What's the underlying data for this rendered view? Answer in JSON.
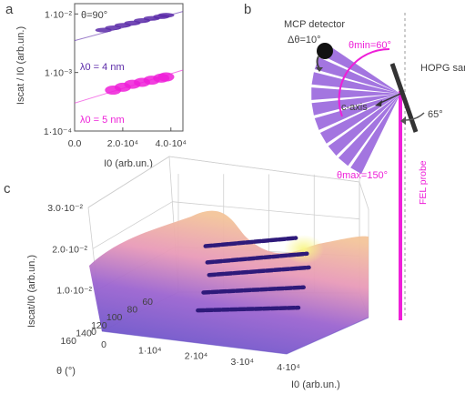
{
  "panels": {
    "a": "a",
    "b": "b",
    "c": "c"
  },
  "chart_data": [
    {
      "type": "scatter",
      "panel": "a",
      "annotation": "θ=90°",
      "xlabel": "I0 (arb.un.)",
      "ylabel": "Iscat / I0 (arb.un.)",
      "xlim": [
        0,
        45000
      ],
      "ylim": [
        0.0001,
        0.015
      ],
      "yscale": "log",
      "x_tick_labels": [
        "0.0",
        "2.0·10⁴",
        "4.0·10⁴"
      ],
      "y_tick_labels": [
        "1·10⁻²",
        "1·10⁻³",
        "1·10⁻⁴"
      ],
      "series": [
        {
          "name": "λ0 = 4 nm",
          "color": "#5b2aa8",
          "x": [
            12000,
            16000,
            20000,
            24000,
            28000,
            32000,
            36000,
            38000
          ],
          "y": [
            0.0053,
            0.0058,
            0.0064,
            0.007,
            0.0077,
            0.0084,
            0.009,
            0.0095
          ],
          "fit": {
            "x": [
              0,
              45000
            ],
            "y": [
              0.0035,
              0.011
            ]
          }
        },
        {
          "name": "λ0 = 5 nm",
          "color": "#ee1fd8",
          "x": [
            16000,
            20000,
            24000,
            28000,
            32000,
            36000,
            38000
          ],
          "y": [
            0.0005,
            0.00056,
            0.00063,
            0.00068,
            0.00074,
            0.0008,
            0.00084
          ],
          "fit": {
            "x": [
              0,
              45000
            ],
            "y": [
              0.0003,
              0.0011
            ]
          }
        }
      ]
    },
    {
      "type": "diagram",
      "panel": "b",
      "labels": {
        "detector": "MCP detector",
        "delta": "Δθ=10°",
        "theta_min": "θmin=60°",
        "theta_max": "θmax=150°",
        "sample": "HOPG sample",
        "caxis": "c-axis",
        "angle": "65°",
        "probe": "FEL probe"
      },
      "detector_angles_deg": [
        60,
        70,
        80,
        90,
        100,
        110,
        120,
        130,
        140,
        150
      ]
    },
    {
      "type": "surface",
      "panel": "c",
      "xlabel": "I0 (arb.un.)",
      "ylabel": "θ (°)",
      "zlabel": "Iscat/I0 (arb.un.)",
      "x_ticks": [
        0,
        10000,
        20000,
        30000,
        40000
      ],
      "x_tick_labels": [
        "0",
        "1·10⁴",
        "2·10⁴",
        "3·10⁴",
        "4·10⁴"
      ],
      "y_ticks": [
        60,
        80,
        100,
        120,
        140,
        160
      ],
      "y_tick_labels": [
        "60",
        "80",
        "100",
        "120",
        "140",
        "160"
      ],
      "z_ticks": [
        0,
        0.01,
        0.02,
        0.03
      ],
      "z_tick_labels": [
        "0",
        "1.0·10⁻²",
        "2.0·10⁻²",
        "3.0·10⁻²"
      ],
      "zlim": [
        0,
        0.03
      ],
      "colormap": [
        "#5a4fc8",
        "#b86ad8",
        "#f2a5b4",
        "#f5f08a"
      ],
      "data_lines": [
        {
          "theta": 70,
          "I0_range": [
            8000,
            28000
          ],
          "z": [
            0.013,
            0.0155
          ]
        },
        {
          "theta": 80,
          "I0_range": [
            10000,
            32000
          ],
          "z": [
            0.01,
            0.013
          ]
        },
        {
          "theta": 90,
          "I0_range": [
            12000,
            34000
          ],
          "z": [
            0.008,
            0.011
          ]
        },
        {
          "theta": 110,
          "I0_range": [
            14000,
            36000
          ],
          "z": [
            0.006,
            0.009
          ]
        },
        {
          "theta": 130,
          "I0_range": [
            16000,
            38000
          ],
          "z": [
            0.004,
            0.007
          ]
        }
      ]
    }
  ]
}
